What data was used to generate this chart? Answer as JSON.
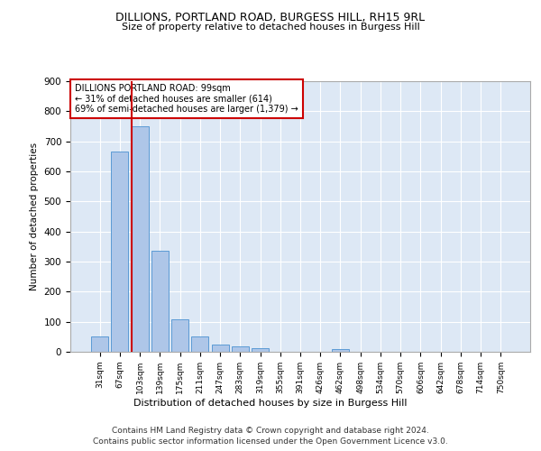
{
  "title1": "DILLIONS, PORTLAND ROAD, BURGESS HILL, RH15 9RL",
  "title2": "Size of property relative to detached houses in Burgess Hill",
  "xlabel": "Distribution of detached houses by size in Burgess Hill",
  "ylabel": "Number of detached properties",
  "footnote1": "Contains HM Land Registry data © Crown copyright and database right 2024.",
  "footnote2": "Contains public sector information licensed under the Open Government Licence v3.0.",
  "annotation_line1": "DILLIONS PORTLAND ROAD: 99sqm",
  "annotation_line2": "← 31% of detached houses are smaller (614)",
  "annotation_line3": "69% of semi-detached houses are larger (1,379) →",
  "bar_labels": [
    "31sqm",
    "67sqm",
    "103sqm",
    "139sqm",
    "175sqm",
    "211sqm",
    "247sqm",
    "283sqm",
    "319sqm",
    "355sqm",
    "391sqm",
    "426sqm",
    "462sqm",
    "498sqm",
    "534sqm",
    "570sqm",
    "606sqm",
    "642sqm",
    "678sqm",
    "714sqm",
    "750sqm"
  ],
  "bar_values": [
    50,
    665,
    750,
    335,
    108,
    50,
    25,
    17,
    13,
    0,
    0,
    0,
    10,
    0,
    0,
    0,
    0,
    0,
    0,
    0,
    0
  ],
  "bar_color": "#aec6e8",
  "bar_edge_color": "#5b9bd5",
  "property_line_color": "#cc0000",
  "ylim": [
    0,
    900
  ],
  "yticks": [
    0,
    100,
    200,
    300,
    400,
    500,
    600,
    700,
    800,
    900
  ],
  "bg_color": "#dde8f5",
  "annotation_box_color": "#ffffff",
  "annotation_box_edge": "#cc0000",
  "grid_color": "#ffffff"
}
